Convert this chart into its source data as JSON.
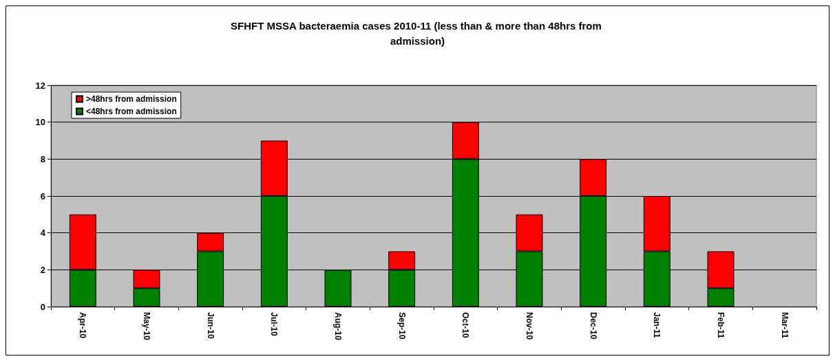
{
  "chart_data": {
    "type": "bar",
    "stacked": true,
    "title": "SFHFT MSSA bacteraemia cases 2010-11 (less than & more than 48hrs from admission)",
    "categories": [
      "Apr-10",
      "May-10",
      "Jun-10",
      "Jul-10",
      "Aug-10",
      "Sep-10",
      "Oct-10",
      "Nov-10",
      "Dec-10",
      "Jan-11",
      "Feb-11",
      "Mar-11"
    ],
    "series": [
      {
        "name": "<48hrs from admission",
        "color": "#008000",
        "values": [
          2,
          1,
          3,
          6,
          2,
          2,
          8,
          3,
          6,
          3,
          1,
          null
        ]
      },
      {
        "name": ">48hrs from admission",
        "color": "#ff0000",
        "values": [
          3,
          1,
          1,
          3,
          null,
          1,
          2,
          2,
          2,
          3,
          2,
          null
        ]
      }
    ],
    "ylim": [
      0,
      12
    ],
    "yticks": [
      0,
      2,
      4,
      6,
      8,
      10,
      12
    ],
    "grid": "y",
    "legend": "top left"
  }
}
